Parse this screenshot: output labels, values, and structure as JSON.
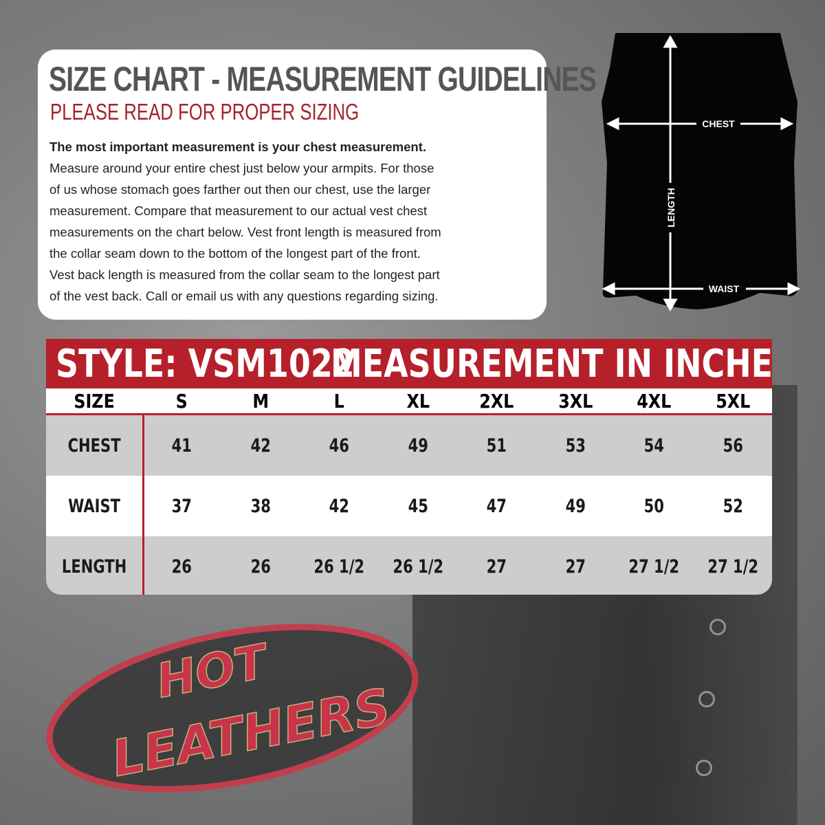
{
  "guidelines": {
    "title": "SIZE CHART - MEASUREMENT GUIDELINES",
    "subtitle": "PLEASE READ FOR PROPER SIZING",
    "lead": "The most important measurement is your chest measurement.",
    "lines": [
      "Measure around your entire chest just below your armpits.  For those",
      "of us whose stomach goes farther out then our chest, use the larger",
      "measurement. Compare that measurement to our actual vest chest",
      "measurements on the chart below.  Vest front length is measured from",
      "the collar seam down to the bottom of the longest part of the front.",
      "Vest back length is measured from the collar seam to the longest part",
      "of the vest back.  Call or email us with any questions regarding sizing."
    ]
  },
  "diagram": {
    "chest": "CHEST",
    "length": "LENGTH",
    "waist": "WAIST"
  },
  "table": {
    "style_label": "STYLE: VSM1022",
    "unit_label": "MEASUREMENT IN INCHES",
    "size_header": "SIZE",
    "sizes": [
      "S",
      "M",
      "L",
      "XL",
      "2XL",
      "3XL",
      "4XL",
      "5XL"
    ],
    "rows": [
      {
        "label": "CHEST",
        "values": [
          "41",
          "42",
          "46",
          "49",
          "51",
          "53",
          "54",
          "56"
        ]
      },
      {
        "label": "WAIST",
        "values": [
          "37",
          "38",
          "42",
          "45",
          "47",
          "49",
          "50",
          "52"
        ]
      },
      {
        "label": "LENGTH",
        "values": [
          "26",
          "26",
          "26 1/2",
          "26 1/2",
          "27",
          "27",
          "27 1/2",
          "27 1/2"
        ]
      }
    ]
  },
  "logo": {
    "text": "HOT LEATHERS"
  },
  "colors": {
    "accent": "#b5202a",
    "title_gray": "#555555",
    "row_gray": "#cdcdcd"
  }
}
